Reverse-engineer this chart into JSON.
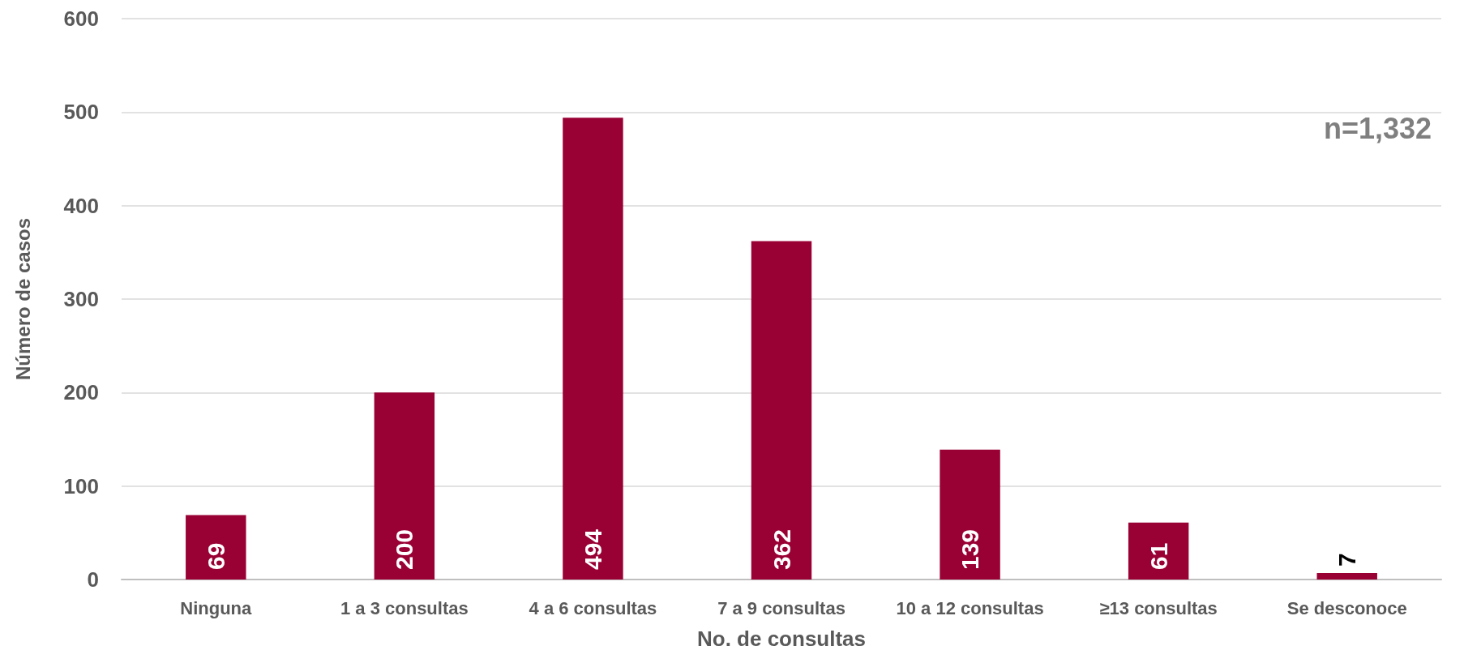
{
  "chart_data": {
    "type": "bar",
    "xlabel": "No. de consultas",
    "ylabel": "Número de casos",
    "categories": [
      "Ninguna",
      "1 a 3 consultas",
      "4 a 6 consultas",
      "7 a 9 consultas",
      "10 a 12 consultas",
      "≥13 consultas",
      "Se desconoce"
    ],
    "values": [
      69,
      200,
      494,
      362,
      139,
      61,
      7
    ],
    "color": "#990033",
    "ylim": [
      0,
      600
    ],
    "yticks": [
      0,
      100,
      200,
      300,
      400,
      500,
      600
    ],
    "grid": "y",
    "data_labels": true,
    "annotations": [
      "n=1,332"
    ]
  }
}
